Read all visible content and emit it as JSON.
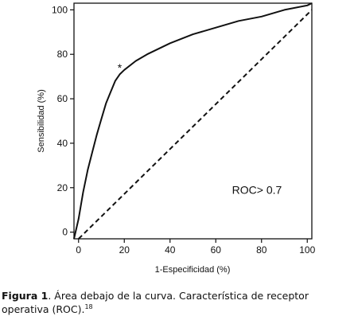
{
  "chart_data": {
    "type": "line",
    "title": "",
    "xlabel": "1-Especificidad (%)",
    "ylabel": "Sensibilidad (%)",
    "xlim": [
      -2,
      102
    ],
    "ylim": [
      -3,
      103
    ],
    "xticks": [
      0,
      20,
      40,
      60,
      80,
      100
    ],
    "yticks": [
      0,
      20,
      40,
      60,
      80,
      100
    ],
    "grid": false,
    "series": [
      {
        "style": "solid",
        "x": [
          -2,
          0,
          2,
          4,
          6,
          8,
          10,
          12,
          14,
          16,
          18,
          20,
          25,
          30,
          40,
          50,
          60,
          70,
          80,
          90,
          100,
          102
        ],
        "y": [
          -3,
          6,
          18,
          28,
          36,
          44,
          51,
          58,
          63,
          68,
          71,
          73,
          77,
          80,
          85,
          89,
          92,
          95,
          97,
          100,
          102,
          103
        ]
      },
      {
        "style": "dashed",
        "x": [
          0,
          102
        ],
        "y": [
          -3,
          100
        ]
      }
    ],
    "annotations": [
      {
        "text": "*",
        "x": 18,
        "y": 74
      },
      {
        "text": "ROC> 0.7",
        "x": 78,
        "y": 19
      }
    ]
  },
  "caption": {
    "label": "Figura 1",
    "text": ". Área debajo de la curva. Característica de receptor operativa (ROC).",
    "ref": "18"
  }
}
